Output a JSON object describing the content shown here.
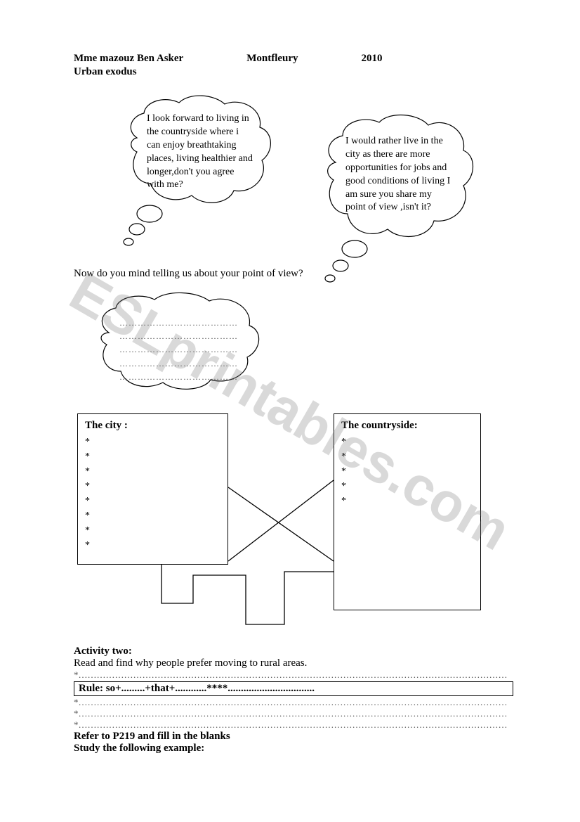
{
  "header": {
    "author": "Mme mazouz Ben Asker",
    "place": "Montfleury",
    "year": "2010",
    "subtitle": "Urban exodus"
  },
  "bubble1": "I look forward to living in the countryside where i can enjoy breathtaking places, living healthier and longer,don't you agree with me?",
  "bubble2": "I would rather live in the city as there are more opportunities for jobs and good conditions of living I am sure you share my point of view ,isn't it?",
  "prompt": "Now  do you mind telling us about your point of view?",
  "blank_lines": "…………………………………\n…………………………………\n…………………………………\n…………………………………\n…………………………………",
  "city": {
    "title": "The city :",
    "items": [
      "*",
      "*",
      "*",
      "*",
      "*",
      "*",
      "*",
      "*"
    ]
  },
  "country": {
    "title": "The countryside:",
    "items": [
      "*",
      "*",
      "*",
      "*",
      "*"
    ]
  },
  "activity": {
    "title": "Activity two:",
    "instruction": "Read and find why people prefer moving to rural areas.",
    "line1": "*……………………………………………………………………………………………………………………………",
    "rule": "Rule: so+.........+that+............****.................................",
    "line2": "*……………………………………………………………………………………………………………………………",
    "line3": "*……………………………………………………………………………………………………………………………",
    "line4": "*……………………………………………………………………………………………………………………………",
    "refer": "Refer to P219 and fill in the blanks",
    "study": "Study the following example:"
  },
  "watermark": "ESLprintables.com",
  "shapes": {
    "stroke": "#000000",
    "fill": "#ffffff",
    "stroke_width": 1.2
  }
}
